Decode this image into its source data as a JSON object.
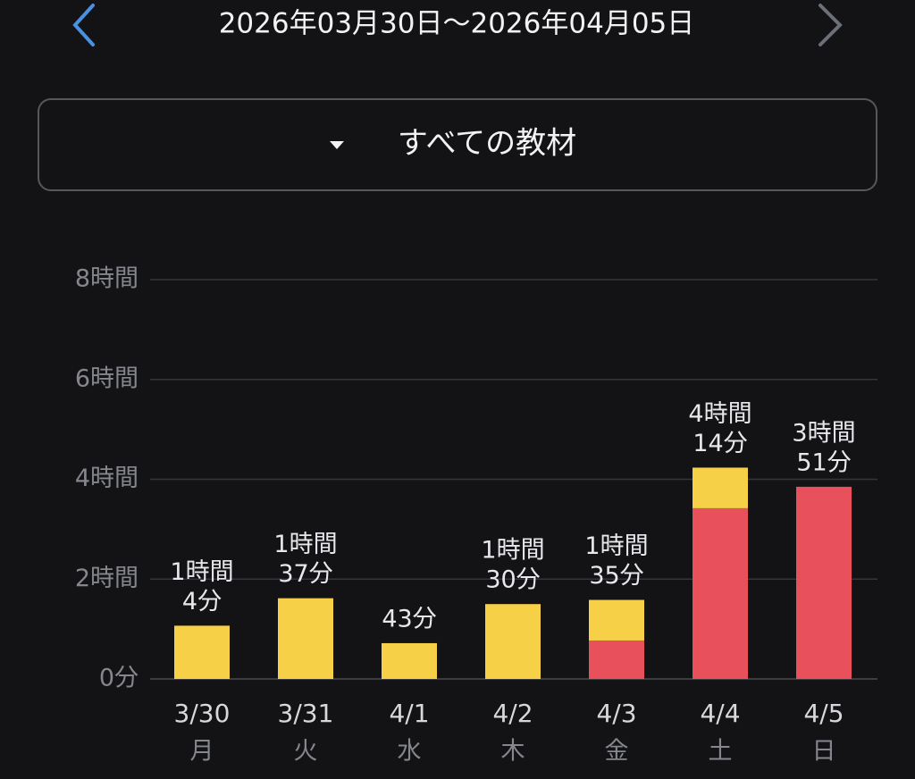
{
  "header": {
    "date_range": "2026年03月30日〜2026年04月05日"
  },
  "filter": {
    "label": "すべての教材"
  },
  "chart_data": {
    "type": "stacked-bar",
    "categories": [
      "3/30",
      "3/31",
      "4/1",
      "4/2",
      "4/3",
      "4/4",
      "4/5"
    ],
    "weekdays": [
      "月",
      "火",
      "水",
      "木",
      "金",
      "土",
      "日"
    ],
    "series": [
      {
        "color": "#e8505b",
        "values": [
          0,
          0,
          0,
          0,
          0.77,
          3.42,
          3.85
        ]
      },
      {
        "color": "#f6d046",
        "values": [
          1.0667,
          1.6167,
          0.7167,
          1.5,
          0.8133,
          0.8133,
          0
        ]
      }
    ],
    "totals": [
      1.0667,
      1.6167,
      0.7167,
      1.5,
      1.5833,
      4.2333,
      3.85
    ],
    "total_labels": [
      [
        "1時間",
        "4分"
      ],
      [
        "1時間",
        "37分"
      ],
      [
        "43分"
      ],
      [
        "1時間",
        "30分"
      ],
      [
        "1時間",
        "35分"
      ],
      [
        "4時間",
        "14分"
      ],
      [
        "3時間",
        "51分"
      ]
    ],
    "ylim": [
      0,
      8
    ],
    "yticks": [
      {
        "value": 0,
        "label": "0分"
      },
      {
        "value": 2,
        "label": "2時間"
      },
      {
        "value": 4,
        "label": "4時間"
      },
      {
        "value": 6,
        "label": "6時間"
      },
      {
        "value": 8,
        "label": "8時間"
      }
    ],
    "grid": true
  }
}
